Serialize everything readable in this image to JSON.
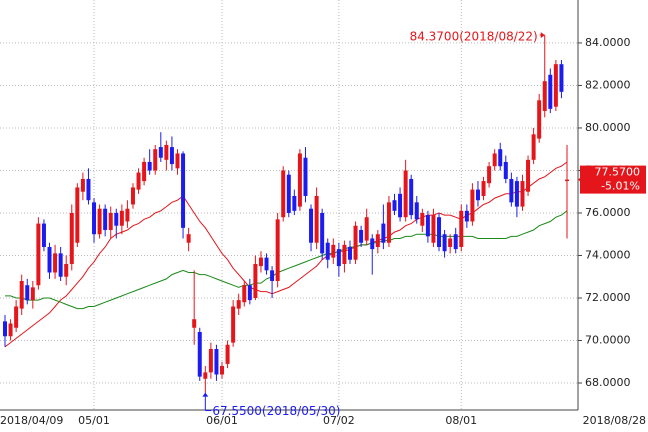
{
  "chart_data": {
    "type": "candlestick",
    "categories": [
      "2018/04/09",
      null,
      null,
      null,
      null,
      null,
      null,
      null,
      null,
      null,
      null,
      null,
      null,
      null,
      null,
      null,
      "05/01",
      null,
      null,
      null,
      null,
      null,
      null,
      null,
      null,
      null,
      null,
      null,
      null,
      null,
      null,
      null,
      null,
      null,
      null,
      null,
      null,
      null,
      null,
      "06/01",
      null,
      null,
      null,
      null,
      null,
      null,
      null,
      null,
      null,
      null,
      null,
      null,
      null,
      null,
      null,
      null,
      null,
      null,
      null,
      null,
      "07/02",
      null,
      null,
      null,
      null,
      null,
      null,
      null,
      null,
      null,
      null,
      null,
      null,
      null,
      null,
      null,
      null,
      null,
      null,
      null,
      null,
      null,
      "08/01",
      null,
      null,
      null,
      null,
      null,
      null,
      null,
      null,
      null,
      null,
      null,
      null,
      null,
      null,
      null,
      null,
      null,
      null,
      "2018/08/28"
    ],
    "open": [
      70.9,
      70.2,
      70.6,
      71.5,
      72.6,
      71.9,
      72.6,
      75.5,
      74.4,
      73.2,
      74.1,
      73.0,
      73.6,
      74.6,
      77.0,
      77.6,
      76.5,
      75.0,
      76.2,
      75.2,
      76.0,
      75.4,
      75.6,
      76.4,
      77.1,
      77.5,
      78.4,
      78.0,
      79.1,
      78.5,
      79.1,
      78.1,
      78.8,
      74.6,
      70.6,
      70.4,
      68.2,
      68.5,
      69.6,
      68.4,
      68.9,
      69.9,
      71.5,
      71.8,
      72.6,
      72.0,
      73.5,
      73.9,
      73.3,
      72.8,
      75.8,
      77.8,
      76.8,
      76.3,
      78.6,
      76.2,
      74.6,
      76.0,
      74.6,
      73.9,
      74.3,
      73.6,
      74.4,
      73.8,
      75.2,
      74.7,
      74.8,
      74.4,
      75.5,
      74.6,
      76.6,
      76.9,
      75.8,
      77.6,
      76.5,
      75.4,
      75.9,
      74.6,
      75.8,
      75.0,
      74.4,
      75.0,
      74.4,
      76.1,
      75.6,
      77.1,
      76.8,
      77.4,
      78.2,
      79.0,
      78.4,
      77.6,
      77.5,
      76.3,
      77.0,
      78.5,
      79.5,
      80.8,
      82.5,
      81.0,
      83.0,
      77.5
    ],
    "high": [
      71.2,
      71.0,
      71.9,
      73.1,
      72.9,
      72.8,
      75.8,
      75.7,
      74.6,
      74.5,
      74.4,
      74.0,
      76.4,
      77.4,
      77.9,
      78.1,
      76.7,
      76.4,
      76.4,
      76.3,
      76.2,
      76.4,
      76.6,
      77.4,
      78.1,
      78.6,
      79.0,
      79.2,
      79.8,
      79.4,
      79.6,
      79.0,
      78.9,
      75.3,
      73.3,
      70.6,
      68.8,
      69.9,
      69.8,
      69.0,
      70.0,
      71.9,
      72.2,
      72.8,
      72.9,
      74.0,
      74.2,
      74.1,
      73.5,
      76.0,
      78.2,
      78.0,
      77.1,
      79.0,
      79.1,
      76.4,
      77.2,
      76.2,
      74.8,
      74.8,
      74.6,
      74.7,
      74.7,
      75.6,
      75.4,
      76.2,
      75.0,
      75.2,
      76.4,
      76.8,
      76.9,
      77.2,
      78.5,
      77.8,
      76.8,
      76.2,
      76.1,
      76.2,
      76.0,
      75.2,
      75.0,
      75.3,
      76.4,
      76.4,
      77.4,
      77.5,
      77.7,
      78.4,
      79.0,
      79.3,
      78.7,
      77.9,
      77.7,
      77.8,
      78.7,
      80.0,
      81.6,
      84.37,
      82.8,
      83.2,
      83.2,
      79.2
    ],
    "low": [
      69.7,
      70.0,
      70.4,
      71.2,
      71.7,
      71.5,
      72.4,
      74.2,
      72.9,
      72.9,
      72.8,
      72.6,
      73.3,
      74.4,
      76.6,
      76.4,
      74.6,
      74.8,
      74.9,
      74.8,
      74.8,
      75.0,
      75.3,
      76.2,
      76.9,
      77.3,
      77.8,
      77.8,
      78.4,
      78.0,
      78.0,
      77.8,
      74.8,
      74.2,
      69.8,
      68.1,
      67.55,
      68.2,
      68.1,
      68.2,
      68.7,
      69.7,
      71.2,
      71.6,
      71.7,
      71.9,
      73.2,
      73.1,
      72.0,
      72.5,
      75.6,
      75.8,
      75.9,
      76.1,
      76.5,
      74.2,
      74.3,
      73.8,
      73.4,
      73.6,
      73.0,
      73.2,
      73.6,
      73.6,
      74.4,
      74.5,
      73.1,
      74.1,
      74.3,
      74.4,
      75.9,
      75.6,
      75.6,
      75.7,
      75.5,
      75.1,
      74.6,
      74.4,
      74.2,
      73.9,
      74.1,
      74.1,
      74.2,
      75.3,
      75.4,
      76.3,
      76.6,
      77.2,
      78.0,
      78.0,
      77.4,
      76.3,
      75.8,
      76.1,
      76.8,
      78.3,
      79.3,
      80.5,
      80.7,
      80.8,
      81.4,
      74.8
    ],
    "close": [
      70.2,
      70.8,
      71.6,
      72.8,
      71.9,
      72.5,
      75.5,
      74.4,
      73.2,
      74.1,
      73.0,
      73.6,
      76.0,
      77.2,
      77.6,
      76.6,
      75.0,
      76.2,
      75.2,
      76.0,
      75.4,
      76.1,
      76.2,
      77.2,
      77.9,
      78.4,
      78.0,
      79.0,
      78.6,
      79.2,
      78.3,
      78.8,
      75.3,
      75.0,
      71.0,
      68.3,
      68.5,
      69.6,
      68.4,
      68.8,
      69.8,
      71.6,
      71.9,
      72.6,
      71.9,
      73.6,
      73.9,
      73.3,
      72.8,
      75.7,
      78.0,
      76.0,
      76.1,
      78.8,
      76.8,
      74.6,
      76.8,
      74.1,
      73.8,
      74.5,
      73.5,
      74.5,
      73.8,
      75.4,
      74.6,
      75.8,
      74.3,
      75.0,
      74.6,
      76.5,
      76.1,
      75.8,
      78.0,
      75.9,
      75.7,
      76.0,
      74.9,
      75.9,
      74.4,
      74.2,
      74.8,
      74.3,
      76.1,
      75.6,
      77.1,
      76.6,
      77.5,
      78.2,
      78.8,
      78.2,
      77.6,
      76.5,
      76.3,
      77.5,
      78.5,
      79.7,
      81.3,
      82.2,
      80.9,
      83.0,
      81.7,
      77.57
    ],
    "up_color": "#e4161b",
    "down_color": "#1c1cf0",
    "moving_averages": [
      {
        "color": "#e4161b",
        "values": [
          69.7,
          69.9,
          70.1,
          70.3,
          70.5,
          70.7,
          70.9,
          71.1,
          71.3,
          71.6,
          71.9,
          72.1,
          72.4,
          72.7,
          73.0,
          73.4,
          73.7,
          74.1,
          74.4,
          74.8,
          75.0,
          75.1,
          75.2,
          75.4,
          75.5,
          75.7,
          75.8,
          76.0,
          76.1,
          76.3,
          76.5,
          76.6,
          76.8,
          76.4,
          76.0,
          75.6,
          75.3,
          74.9,
          74.5,
          74.1,
          73.8,
          73.4,
          73.1,
          72.8,
          72.5,
          72.4,
          72.3,
          72.3,
          72.2,
          72.3,
          72.4,
          72.5,
          72.7,
          72.9,
          73.1,
          73.3,
          73.5,
          73.8,
          74.0,
          74.1,
          74.2,
          74.2,
          74.3,
          74.4,
          74.5,
          74.5,
          74.6,
          74.7,
          74.8,
          74.9,
          75.1,
          75.2,
          75.4,
          75.5,
          75.7,
          75.8,
          75.9,
          75.9,
          76.0,
          75.9,
          75.9,
          75.8,
          75.7,
          75.9,
          76.0,
          76.2,
          76.4,
          76.5,
          76.7,
          76.8,
          76.9,
          76.9,
          77.0,
          77.0,
          77.2,
          77.4,
          77.6,
          77.7,
          77.9,
          78.1,
          78.2,
          78.4
        ]
      },
      {
        "color": "#1a8a1a",
        "values": [
          72.1,
          72.1,
          72.0,
          72.0,
          71.9,
          71.9,
          71.9,
          72.0,
          72.0,
          71.9,
          71.8,
          71.7,
          71.6,
          71.5,
          71.5,
          71.6,
          71.6,
          71.7,
          71.8,
          71.9,
          72.0,
          72.1,
          72.2,
          72.3,
          72.4,
          72.5,
          72.6,
          72.7,
          72.8,
          72.9,
          73.1,
          73.2,
          73.3,
          73.2,
          73.2,
          73.1,
          73.1,
          73.0,
          72.9,
          72.8,
          72.7,
          72.6,
          72.5,
          72.6,
          72.6,
          72.7,
          72.7,
          72.9,
          73.0,
          73.2,
          73.3,
          73.4,
          73.5,
          73.6,
          73.7,
          73.8,
          73.9,
          74.0,
          74.1,
          74.1,
          74.2,
          74.3,
          74.4,
          74.4,
          74.5,
          74.5,
          74.6,
          74.6,
          74.7,
          74.7,
          74.8,
          74.8,
          74.9,
          74.9,
          75.0,
          75.0,
          75.0,
          75.0,
          74.9,
          74.9,
          74.9,
          74.9,
          74.9,
          74.9,
          74.9,
          74.8,
          74.8,
          74.8,
          74.8,
          74.8,
          74.8,
          74.9,
          74.9,
          75.0,
          75.1,
          75.2,
          75.4,
          75.5,
          75.6,
          75.8,
          75.9,
          76.1
        ]
      }
    ],
    "ylim": [
      66.73,
      86.02
    ],
    "yticks": [
      {
        "value": 68,
        "label": "68.0000"
      },
      {
        "value": 70,
        "label": "70.0000"
      },
      {
        "value": 72,
        "label": "72.0000"
      },
      {
        "value": 74,
        "label": "74.0000"
      },
      {
        "value": 76,
        "label": "76.0000"
      },
      {
        "value": 78,
        "label": "78.0000"
      },
      {
        "value": 80,
        "label": "80.0000"
      },
      {
        "value": 82,
        "label": "82.0000"
      },
      {
        "value": 84,
        "label": "84.0000"
      }
    ],
    "grid": true,
    "annotations": [
      {
        "text": "84.3700(2018/08/22)",
        "color": "#e4161b"
      },
      {
        "text": "67.5500(2018/05/30)",
        "color": "#1c1cf0"
      }
    ],
    "last_price": {
      "label": "77.5700",
      "change": "-5.01%",
      "color": "#e4161b"
    }
  }
}
